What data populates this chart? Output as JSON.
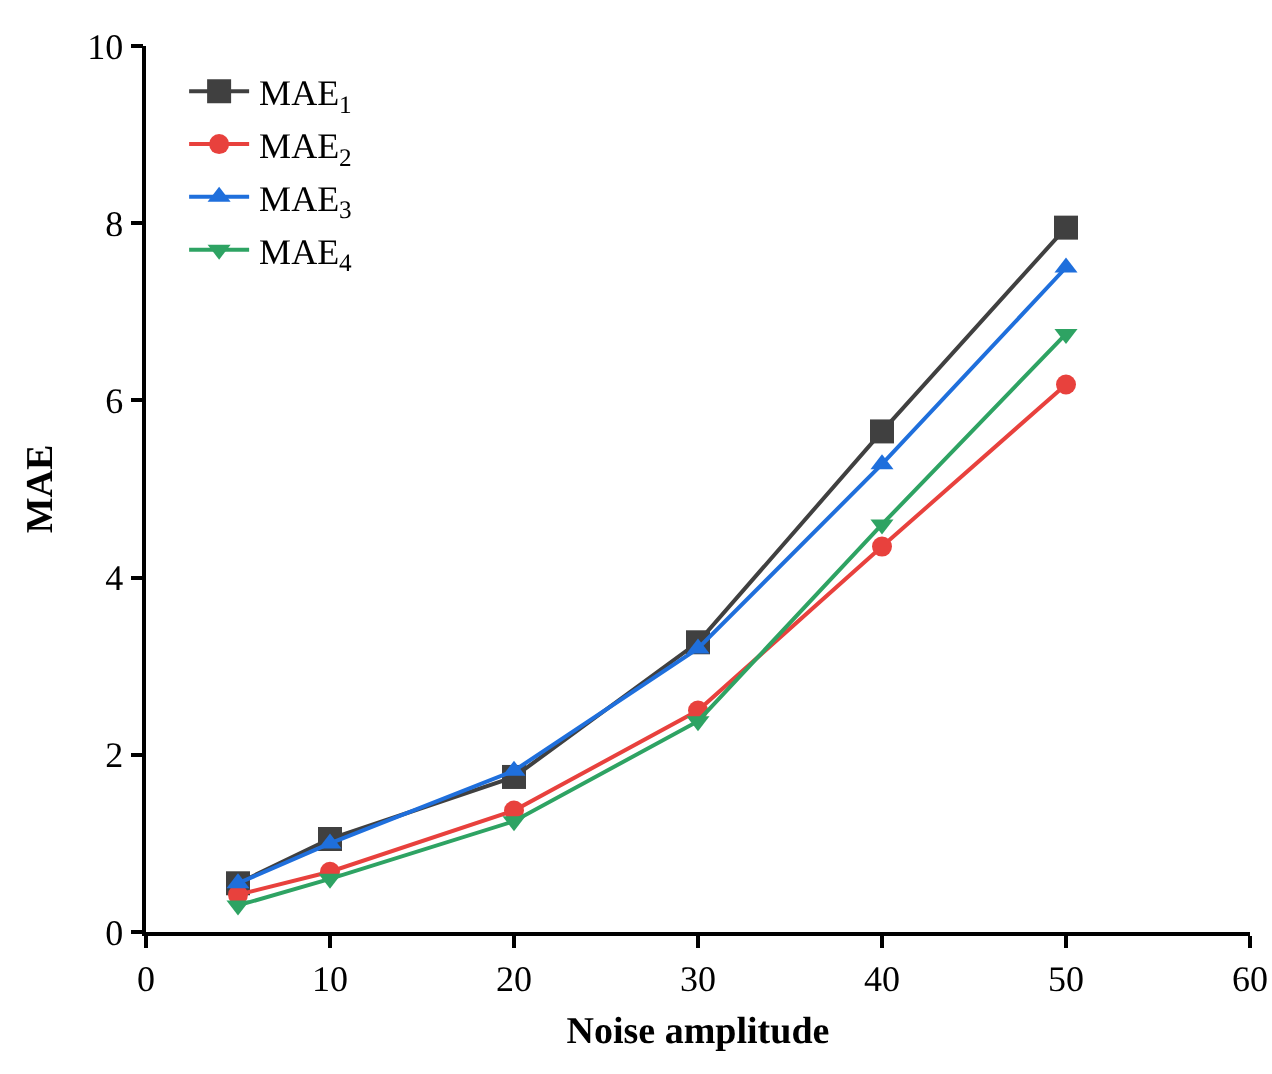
{
  "chart_data": {
    "type": "line",
    "xlabel": "Noise amplitude",
    "ylabel": "MAE",
    "x": [
      5,
      10,
      20,
      30,
      40,
      50
    ],
    "series": [
      {
        "name": "MAE$_{1}$",
        "color": "#404040",
        "marker": "square",
        "values": [
          0.55,
          1.05,
          1.75,
          3.27,
          5.65,
          7.95
        ]
      },
      {
        "name": "MAE$_{2}$",
        "color": "#e8413d",
        "marker": "circle",
        "values": [
          0.42,
          0.68,
          1.37,
          2.5,
          4.35,
          6.18
        ]
      },
      {
        "name": "MAE$_{3}$",
        "color": "#1f6fdc",
        "marker": "triangle",
        "values": [
          0.55,
          1.0,
          1.82,
          3.2,
          5.28,
          7.5
        ]
      },
      {
        "name": "MAE$_{4}$",
        "color": "#2ea363",
        "marker": "triangle-down",
        "values": [
          0.3,
          0.6,
          1.25,
          2.38,
          4.6,
          6.75
        ]
      }
    ],
    "xlim": [
      0,
      60
    ],
    "xticks": [
      0,
      10,
      20,
      30,
      40,
      50,
      60
    ],
    "ylim": [
      0,
      10
    ],
    "yticks": [
      0,
      2,
      4,
      6,
      8,
      10
    ],
    "grid": false,
    "legend": "top left"
  }
}
